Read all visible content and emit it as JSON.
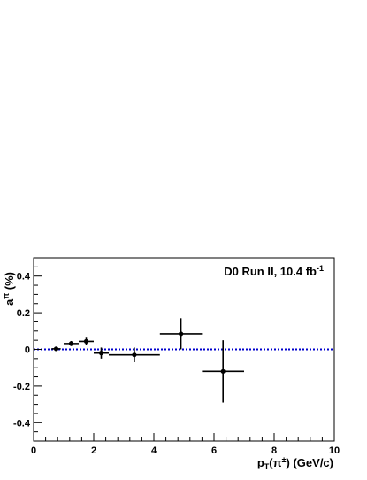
{
  "chart_data": {
    "type": "scatter",
    "xlim": [
      0,
      10
    ],
    "ylim": [
      -0.5,
      0.5
    ],
    "x_ticks": [
      0,
      2,
      4,
      6,
      8,
      10
    ],
    "y_ticks": [
      -0.4,
      -0.2,
      0,
      0.2,
      0.4
    ],
    "x_tick_labels": [
      "0",
      "2",
      "4",
      "6",
      "8",
      "10"
    ],
    "y_tick_labels": [
      "-0.4",
      "-0.2",
      "0",
      "0.2",
      "0.4"
    ],
    "xlabel": "p_T(π±) (GeV/c)",
    "ylabel": "a^π (%)",
    "annotation": "D0 Run II, 10.4 fb-1",
    "reference_line": {
      "y": 0,
      "color": "#0000cc",
      "style": "dotted"
    },
    "grid": false,
    "points": [
      {
        "x": 0.75,
        "y": 0.003,
        "xlo": 0.6,
        "xhi": 0.9,
        "ylo": -0.003,
        "yhi": 0.009
      },
      {
        "x": 1.25,
        "y": 0.032,
        "xlo": 1.0,
        "xhi": 1.5,
        "ylo": 0.018,
        "yhi": 0.046
      },
      {
        "x": 1.75,
        "y": 0.044,
        "xlo": 1.5,
        "xhi": 2.0,
        "ylo": 0.024,
        "yhi": 0.064
      },
      {
        "x": 2.25,
        "y": -0.02,
        "xlo": 2.0,
        "xhi": 2.5,
        "ylo": -0.05,
        "yhi": 0.01
      },
      {
        "x": 3.35,
        "y": -0.03,
        "xlo": 2.5,
        "xhi": 4.2,
        "ylo": -0.07,
        "yhi": 0.01
      },
      {
        "x": 4.9,
        "y": 0.085,
        "xlo": 4.2,
        "xhi": 5.6,
        "ylo": 0.0,
        "yhi": 0.17
      },
      {
        "x": 6.3,
        "y": -0.12,
        "xlo": 5.6,
        "xhi": 7.0,
        "ylo": -0.29,
        "yhi": 0.05
      }
    ]
  }
}
